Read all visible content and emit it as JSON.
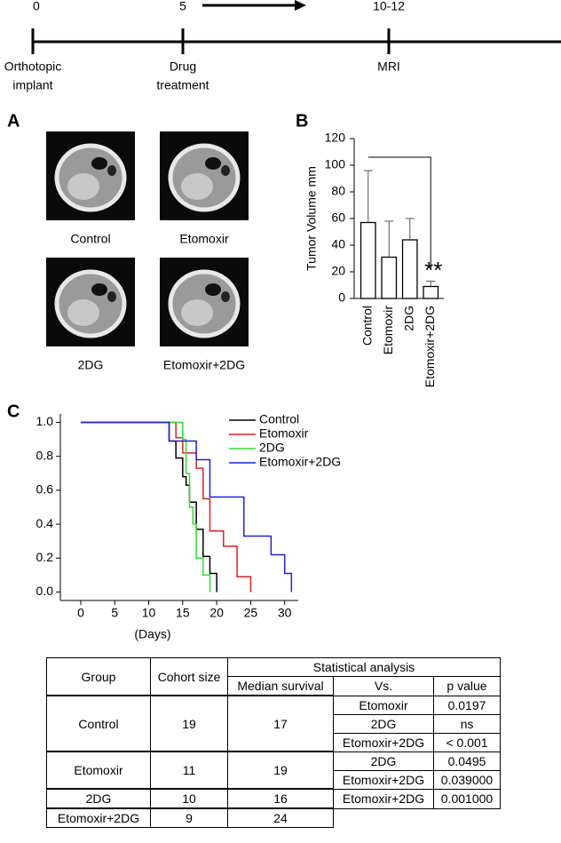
{
  "timeline": {
    "points": [
      {
        "day": "0",
        "label": [
          "Orthotopic",
          "implant"
        ]
      },
      {
        "day": "5",
        "label": [
          "Drug",
          "treatment"
        ]
      },
      {
        "day": "10-12",
        "label": [
          "MRI"
        ]
      }
    ]
  },
  "panels": [
    "A",
    "B",
    "C"
  ],
  "images": [
    "Control",
    "Etomoxir",
    "2DG",
    "Etomoxir+2DG"
  ],
  "chart_data": [
    {
      "type": "bar",
      "ylabel": "Tumor Volume mm",
      "categories": [
        "Control",
        "Etomoxir",
        "2DG",
        "Etomoxir+2DG"
      ],
      "values": [
        57,
        31,
        44,
        9
      ],
      "errors": [
        39,
        27,
        16,
        4
      ],
      "color": "#ffffff",
      "edgecolor": "#000000",
      "ylim": [
        0,
        120
      ],
      "yticks": [
        0,
        20,
        40,
        60,
        80,
        100,
        120
      ],
      "annotation": "**"
    },
    {
      "type": "line",
      "xlabel": "(Days)",
      "xlim": [
        -3,
        32
      ],
      "ylim": [
        -0.05,
        1.05
      ],
      "xticks": [
        0,
        5,
        10,
        15,
        20,
        25,
        30
      ],
      "yticks": [
        {
          "value": 0,
          "label": "0.0"
        },
        {
          "value": 0.2,
          "label": "0.2"
        },
        {
          "value": 0.4,
          "label": "0.4"
        },
        {
          "value": 0.6,
          "label": "0.6"
        },
        {
          "value": 0.8,
          "label": "0.8"
        },
        {
          "value": 1,
          "label": "1.0"
        }
      ],
      "legend": "upper right",
      "series": [
        {
          "name": "Control",
          "color": "#000000",
          "x": [
            0,
            13,
            13,
            14,
            14,
            15,
            15,
            15.5,
            15.5,
            16,
            16,
            17,
            17,
            18,
            18,
            19,
            19,
            20,
            20
          ],
          "values": [
            1,
            1,
            0.89,
            0.89,
            0.79,
            0.79,
            0.68,
            0.68,
            0.63,
            0.63,
            0.53,
            0.53,
            0.37,
            0.37,
            0.21,
            0.21,
            0.11,
            0.11,
            0
          ]
        },
        {
          "name": "Etomoxir",
          "color": "#e02020",
          "x": [
            0,
            14,
            14,
            15,
            15,
            17,
            17,
            18,
            18,
            19,
            19,
            21,
            21,
            23,
            23,
            25,
            25
          ],
          "values": [
            1,
            1,
            0.91,
            0.91,
            0.82,
            0.82,
            0.73,
            0.73,
            0.55,
            0.55,
            0.36,
            0.36,
            0.27,
            0.27,
            0.09,
            0.09,
            0
          ]
        },
        {
          "name": "2DG",
          "color": "#33dd33",
          "x": [
            0,
            15,
            15,
            15.5,
            15.5,
            16,
            16,
            16.5,
            16.5,
            17,
            17,
            18,
            18,
            19,
            19
          ],
          "values": [
            1,
            1,
            0.9,
            0.9,
            0.7,
            0.7,
            0.5,
            0.5,
            0.4,
            0.4,
            0.2,
            0.2,
            0.1,
            0.1,
            0
          ]
        },
        {
          "name": "Etomoxir+2DG",
          "color": "#2020dd",
          "x": [
            0,
            13,
            13,
            17,
            17,
            19,
            19,
            24,
            24,
            28,
            28,
            30,
            30,
            31,
            31
          ],
          "values": [
            1,
            1,
            0.89,
            0.89,
            0.78,
            0.78,
            0.56,
            0.56,
            0.33,
            0.33,
            0.22,
            0.22,
            0.11,
            0.11,
            0
          ]
        }
      ]
    }
  ],
  "table": {
    "header": [
      "Group",
      "Cohort size",
      "Statistical analysis",
      "Median survival",
      "Vs.",
      "p value"
    ],
    "rows": [
      {
        "group": "Control",
        "cohort": "19",
        "median": "17",
        "comparisons": [
          [
            "Etomoxir",
            "0.0197"
          ],
          [
            "2DG",
            "ns"
          ],
          [
            "Etomoxir+2DG",
            "< 0.001"
          ]
        ]
      },
      {
        "group": "Etomoxir",
        "cohort": "11",
        "median": "19",
        "comparisons": [
          [
            "2DG",
            "0.0495"
          ],
          [
            "Etomoxir+2DG",
            "0.039000"
          ]
        ]
      },
      {
        "group": "2DG",
        "cohort": "10",
        "median": "16",
        "comparisons": [
          [
            "Etomoxir+2DG",
            "0.001000"
          ]
        ]
      },
      {
        "group": "Etomoxir+2DG",
        "cohort": "9",
        "median": "24",
        "comparisons": []
      }
    ]
  }
}
